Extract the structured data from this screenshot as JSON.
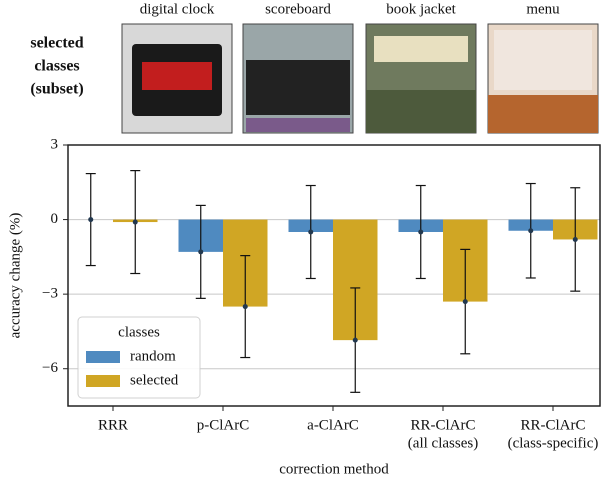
{
  "header": {
    "lines": [
      "selected",
      "classes",
      "(subset)"
    ],
    "images": [
      "digital clock",
      "scoreboard",
      "book jacket",
      "menu"
    ]
  },
  "chart_data": {
    "type": "bar",
    "ylabel": "accuracy change (%)",
    "xlabel": "correction method",
    "categories": [
      [
        "RRR"
      ],
      [
        "p-ClArC"
      ],
      [
        "a-ClArC"
      ],
      [
        "RR-ClArC",
        "(all classes)"
      ],
      [
        "RR-ClArC",
        "(class-specific)"
      ]
    ],
    "series": [
      {
        "name": "random",
        "color": "#4f8ac0",
        "values": [
          0,
          -1.3,
          -0.5,
          -0.5,
          -0.45
        ],
        "errors": [
          1.85,
          1.87,
          1.87,
          1.87,
          1.9
        ]
      },
      {
        "name": "selected",
        "color": "#d0a624",
        "values": [
          -0.1,
          -3.5,
          -4.85,
          -3.3,
          -0.8
        ],
        "errors": [
          2.07,
          2.05,
          2.1,
          2.1,
          2.08
        ]
      }
    ],
    "ylim": [
      -7.5,
      3
    ],
    "yticks": [
      {
        "value": -6,
        "label": "−6"
      },
      {
        "value": -3,
        "label": "−3"
      },
      0,
      3
    ],
    "grid": true,
    "legend_title": "classes",
    "legend": "lower left"
  }
}
